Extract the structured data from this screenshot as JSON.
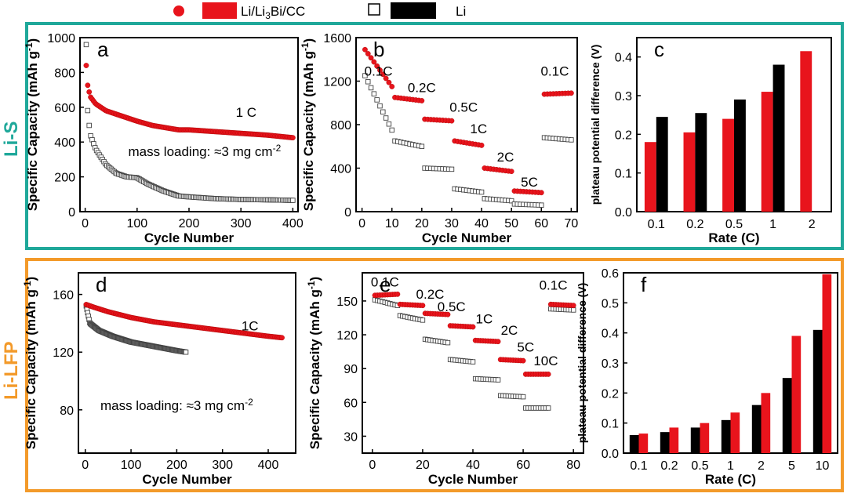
{
  "legend": {
    "li_bi_label": "Li/Li",
    "li_bi_sub": "3",
    "li_bi_label2": "Bi/CC",
    "li_label": "Li"
  },
  "sections": {
    "top": "Li-S",
    "bottom": "Li-LFP"
  },
  "colors": {
    "red": "#e8141c",
    "black": "#000000",
    "teal": "#1fa89a",
    "orange": "#f39a2a",
    "gray": "#555555"
  },
  "chart_data": [
    {
      "id": "a",
      "type": "scatter",
      "panel_label": "a",
      "xlabel": "Cycle Number",
      "ylabel": "Specific Capacity (mAh g",
      "ylabel_sup": "-1",
      "ylabel_end": ")",
      "xlim": [
        -10,
        410
      ],
      "ylim": [
        0,
        1000
      ],
      "xticks": [
        0,
        100,
        200,
        300,
        400
      ],
      "yticks": [
        0,
        200,
        400,
        600,
        800,
        1000
      ],
      "annotations": [
        {
          "text": "1 C",
          "x": 310,
          "y": 545
        },
        {
          "text": "mass loading: ≈3 mg cm",
          "sup": "-2",
          "x": 230,
          "y": 320
        }
      ],
      "series": [
        {
          "name": "Li/Li3Bi/CC",
          "color": "red",
          "marker": "dot",
          "x": [
            2,
            5,
            10,
            20,
            40,
            60,
            80,
            100,
            130,
            160,
            180,
            200,
            250,
            300,
            350,
            400
          ],
          "y": [
            840,
            720,
            660,
            620,
            580,
            560,
            540,
            520,
            495,
            480,
            470,
            470,
            460,
            450,
            440,
            425
          ]
        },
        {
          "name": "Li",
          "color": "black",
          "marker": "square",
          "x": [
            2,
            5,
            10,
            20,
            40,
            60,
            80,
            100,
            120,
            150,
            180,
            200,
            250,
            300,
            350,
            400
          ],
          "y": [
            960,
            560,
            440,
            360,
            270,
            220,
            200,
            195,
            160,
            120,
            90,
            85,
            75,
            70,
            68,
            65
          ]
        }
      ]
    },
    {
      "id": "b",
      "type": "scatter",
      "panel_label": "b",
      "xlabel": "Cycle Number",
      "ylabel": "Specific Capacity (mAh g",
      "ylabel_sup": "-1",
      "ylabel_end": ")",
      "xlim": [
        -2,
        72
      ],
      "ylim": [
        0,
        1600
      ],
      "xticks": [
        0,
        10,
        20,
        30,
        40,
        50,
        60,
        70
      ],
      "yticks": [
        0,
        400,
        800,
        1200,
        1600
      ],
      "annotations": [
        {
          "text": "0.1C",
          "x": 5.5,
          "y": 1250
        },
        {
          "text": "0.2C",
          "x": 20,
          "y": 1100
        },
        {
          "text": "0.5C",
          "x": 34,
          "y": 920
        },
        {
          "text": "1C",
          "x": 39,
          "y": 720
        },
        {
          "text": "2C",
          "x": 48,
          "y": 460
        },
        {
          "text": "5C",
          "x": 56,
          "y": 230
        },
        {
          "text": "0.1C",
          "x": 64.5,
          "y": 1250
        }
      ],
      "series": [
        {
          "name": "Li/Li3Bi/CC",
          "color": "red",
          "marker": "dot",
          "segments": [
            {
              "x0": 1,
              "x1": 10,
              "y0": 1490,
              "y1": 1150
            },
            {
              "x0": 11,
              "x1": 20,
              "y0": 1050,
              "y1": 1020
            },
            {
              "x0": 21,
              "x1": 30,
              "y0": 850,
              "y1": 835
            },
            {
              "x0": 31,
              "x1": 40,
              "y0": 650,
              "y1": 610
            },
            {
              "x0": 41,
              "x1": 50,
              "y0": 400,
              "y1": 370
            },
            {
              "x0": 51,
              "x1": 60,
              "y0": 190,
              "y1": 175
            },
            {
              "x0": 61,
              "x1": 70,
              "y0": 1080,
              "y1": 1090
            }
          ]
        },
        {
          "name": "Li",
          "color": "black",
          "marker": "square",
          "segments": [
            {
              "x0": 1,
              "x1": 10,
              "y0": 1250,
              "y1": 750
            },
            {
              "x0": 11,
              "x1": 20,
              "y0": 650,
              "y1": 600
            },
            {
              "x0": 21,
              "x1": 30,
              "y0": 400,
              "y1": 390
            },
            {
              "x0": 31,
              "x1": 40,
              "y0": 210,
              "y1": 180
            },
            {
              "x0": 41,
              "x1": 50,
              "y0": 120,
              "y1": 100
            },
            {
              "x0": 51,
              "x1": 60,
              "y0": 70,
              "y1": 60
            },
            {
              "x0": 61,
              "x1": 70,
              "y0": 680,
              "y1": 660
            }
          ]
        }
      ]
    },
    {
      "id": "c",
      "type": "bar",
      "panel_label": "c",
      "xlabel": "Rate (C)",
      "ylabel": "plateau potential difference (V)",
      "ylim": [
        0,
        0.45
      ],
      "yticks": [
        0.0,
        0.1,
        0.2,
        0.3,
        0.4
      ],
      "categories": [
        "0.1",
        "0.2",
        "0.5",
        "1",
        "2"
      ],
      "series": [
        {
          "name": "Li/Li3Bi/CC",
          "color": "red",
          "values": [
            0.18,
            0.205,
            0.24,
            0.31,
            0.415
          ]
        },
        {
          "name": "Li",
          "color": "black",
          "values": [
            0.245,
            0.255,
            0.29,
            0.38,
            null
          ]
        }
      ]
    },
    {
      "id": "d",
      "type": "scatter",
      "panel_label": "d",
      "xlabel": "Cycle Number",
      "ylabel": "Specific Capacity (mAh g",
      "ylabel_sup": "-1",
      "ylabel_end": ")",
      "xlim": [
        -15,
        460
      ],
      "ylim": [
        50,
        175
      ],
      "xticks": [
        0,
        100,
        200,
        300,
        400
      ],
      "yticks": [
        80,
        120,
        160
      ],
      "annotations": [
        {
          "text": "1C",
          "x": 360,
          "y": 135
        },
        {
          "text": "mass loading: ≈3 mg cm",
          "sup": "-2",
          "x": 200,
          "y": 80
        }
      ],
      "series": [
        {
          "name": "Li/Li3Bi/CC",
          "color": "red",
          "marker": "dot",
          "x": [
            2,
            20,
            50,
            100,
            150,
            200,
            250,
            300,
            350,
            400,
            430
          ],
          "y": [
            153,
            151,
            148,
            144,
            141,
            139,
            137,
            135,
            133,
            131,
            130
          ]
        },
        {
          "name": "Li",
          "color": "black",
          "marker": "square",
          "x": [
            2,
            10,
            30,
            60,
            100,
            150,
            200,
            220
          ],
          "y": [
            152,
            140,
            135,
            131,
            127,
            124,
            121,
            120
          ]
        }
      ]
    },
    {
      "id": "e",
      "type": "scatter",
      "panel_label": "e",
      "xlabel": "Cycle Number",
      "ylabel": "Specific Capacity (mAh g",
      "ylabel_sup": "-1",
      "ylabel_end": ")",
      "xlim": [
        -4,
        84
      ],
      "ylim": [
        15,
        175
      ],
      "xticks": [
        0,
        20,
        40,
        60,
        80
      ],
      "yticks": [
        30,
        60,
        90,
        120,
        150
      ],
      "annotations": [
        {
          "text": "0.1C",
          "x": 5,
          "y": 163
        },
        {
          "text": "0.2C",
          "x": 23,
          "y": 152
        },
        {
          "text": "0.5C",
          "x": 31.5,
          "y": 141
        },
        {
          "text": "1C",
          "x": 44.5,
          "y": 130
        },
        {
          "text": "2C",
          "x": 54.5,
          "y": 120
        },
        {
          "text": "5C",
          "x": 61,
          "y": 105
        },
        {
          "text": "10C",
          "x": 69,
          "y": 93
        },
        {
          "text": "0.1C",
          "x": 72,
          "y": 160
        }
      ],
      "series": [
        {
          "name": "Li/Li3Bi/CC",
          "color": "red",
          "marker": "dot",
          "segments": [
            {
              "x0": 1,
              "x1": 10,
              "y0": 155,
              "y1": 156
            },
            {
              "x0": 11,
              "x1": 20,
              "y0": 147,
              "y1": 146
            },
            {
              "x0": 21,
              "x1": 30,
              "y0": 139,
              "y1": 138
            },
            {
              "x0": 31,
              "x1": 40,
              "y0": 128,
              "y1": 127
            },
            {
              "x0": 41,
              "x1": 50,
              "y0": 115,
              "y1": 114
            },
            {
              "x0": 51,
              "x1": 60,
              "y0": 98,
              "y1": 97
            },
            {
              "x0": 61,
              "x1": 70,
              "y0": 85,
              "y1": 85
            },
            {
              "x0": 71,
              "x1": 80,
              "y0": 147,
              "y1": 146
            }
          ]
        },
        {
          "name": "Li",
          "color": "black",
          "marker": "square",
          "segments": [
            {
              "x0": 1,
              "x1": 10,
              "y0": 151,
              "y1": 146
            },
            {
              "x0": 11,
              "x1": 20,
              "y0": 137,
              "y1": 133
            },
            {
              "x0": 21,
              "x1": 30,
              "y0": 116,
              "y1": 113
            },
            {
              "x0": 31,
              "x1": 40,
              "y0": 98,
              "y1": 96
            },
            {
              "x0": 41,
              "x1": 50,
              "y0": 81,
              "y1": 80
            },
            {
              "x0": 51,
              "x1": 60,
              "y0": 66,
              "y1": 65
            },
            {
              "x0": 61,
              "x1": 70,
              "y0": 55,
              "y1": 55
            },
            {
              "x0": 71,
              "x1": 80,
              "y0": 143,
              "y1": 142
            }
          ]
        }
      ]
    },
    {
      "id": "f",
      "type": "bar",
      "panel_label": "f",
      "xlabel": "Rate (C)",
      "ylabel": "plateau potential difference (V)",
      "ylim": [
        0,
        0.6
      ],
      "yticks": [
        0.0,
        0.1,
        0.2,
        0.3,
        0.4,
        0.5,
        0.6
      ],
      "categories": [
        "0.1",
        "0.2",
        "0.5",
        "1",
        "2",
        "5",
        "10"
      ],
      "series": [
        {
          "name": "Li",
          "color": "black",
          "values": [
            0.06,
            0.07,
            0.085,
            0.11,
            0.16,
            0.25,
            0.41
          ]
        },
        {
          "name": "Li/Li3Bi/CC",
          "color": "red",
          "values": [
            0.065,
            0.085,
            0.1,
            0.135,
            0.2,
            0.39,
            0.595
          ]
        }
      ]
    }
  ]
}
